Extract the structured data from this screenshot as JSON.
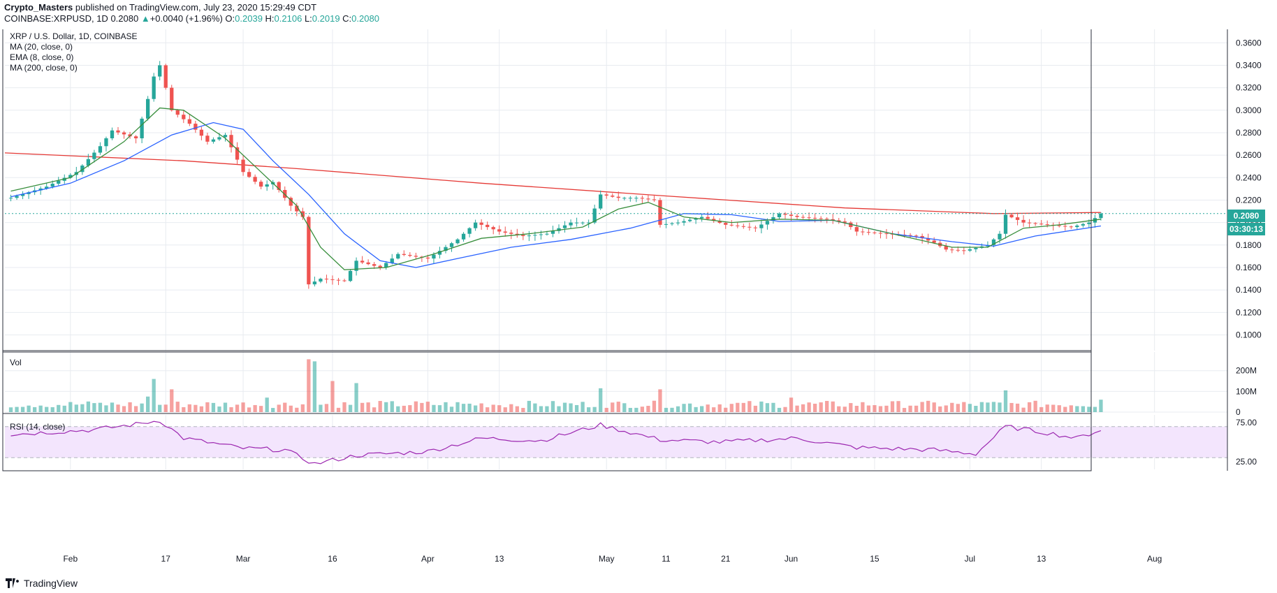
{
  "header": {
    "author": "Crypto_Masters",
    "published_text": "published on TradingView.com, July 23, 2020 15:29:49 CDT",
    "symbol": "COINBASE:XRPUSD, 1D",
    "last": "0.2080",
    "change": "+0.0040 (+1.96%)",
    "o_label": "O:",
    "o": "0.2039",
    "h_label": "H:",
    "h": "0.2106",
    "l_label": "L:",
    "l": "0.2019",
    "c_label": "C:",
    "c": "0.2080"
  },
  "legend": {
    "title": "XRP / U.S. Dollar, 1D, COINBASE",
    "ma20": "MA (20, close, 0)",
    "ema8": "EMA (8, close, 0)",
    "ma200": "MA (200, close, 0)",
    "vol": "Vol",
    "rsi": "RSI (14, close)"
  },
  "price_tag": {
    "value": "0.2080",
    "countdown": "03:30:13"
  },
  "footer": {
    "brand": "TradingView"
  },
  "colors": {
    "up": "#26a69a",
    "down": "#ef5350",
    "ma20": "#2962ff",
    "ema8": "#388e3c",
    "ma200": "#e53935",
    "rsi": "#9c27b0",
    "rsi_band": "#f3e5fd"
  },
  "chart_data": [
    {
      "type": "candlestick",
      "title": "XRP / U.S. Dollar, 1D, COINBASE",
      "x_ticks": [
        "Feb",
        "17",
        "Mar",
        "16",
        "Apr",
        "13",
        "May",
        "11",
        "21",
        "Jun",
        "15",
        "Jul",
        "13",
        "Aug"
      ],
      "y_ticks": [
        "0.3600",
        "0.3400",
        "0.3200",
        "0.3000",
        "0.2800",
        "0.2600",
        "0.2400",
        "0.2200",
        "0.2000",
        "0.1800",
        "0.1600",
        "0.1400",
        "0.1200",
        "0.1000"
      ],
      "ylim": [
        0.086,
        0.372
      ],
      "xlim": [
        "2020-01-21",
        "2020-08-13"
      ],
      "candle_close_path": [
        [
          "2020-01-22",
          0.222
        ],
        [
          "2020-01-28",
          0.232
        ],
        [
          "2020-02-02",
          0.245
        ],
        [
          "2020-02-06",
          0.268
        ],
        [
          "2020-02-08",
          0.282
        ],
        [
          "2020-02-12",
          0.275
        ],
        [
          "2020-02-14",
          0.31
        ],
        [
          "2020-02-15",
          0.33
        ],
        [
          "2020-02-16",
          0.34
        ],
        [
          "2020-02-18",
          0.3
        ],
        [
          "2020-02-21",
          0.288
        ],
        [
          "2020-02-24",
          0.272
        ],
        [
          "2020-02-27",
          0.278
        ],
        [
          "2020-03-01",
          0.245
        ],
        [
          "2020-03-04",
          0.232
        ],
        [
          "2020-03-06",
          0.236
        ],
        [
          "2020-03-09",
          0.215
        ],
        [
          "2020-03-11",
          0.205
        ],
        [
          "2020-03-12",
          0.145
        ],
        [
          "2020-03-14",
          0.15
        ],
        [
          "2020-03-18",
          0.148
        ],
        [
          "2020-03-20",
          0.166
        ],
        [
          "2020-03-24",
          0.16
        ],
        [
          "2020-03-27",
          0.172
        ],
        [
          "2020-04-01",
          0.168
        ],
        [
          "2020-04-06",
          0.185
        ],
        [
          "2020-04-09",
          0.2
        ],
        [
          "2020-04-13",
          0.192
        ],
        [
          "2020-04-17",
          0.188
        ],
        [
          "2020-04-21",
          0.19
        ],
        [
          "2020-04-25",
          0.2
        ],
        [
          "2020-04-28",
          0.2
        ],
        [
          "2020-04-30",
          0.225
        ],
        [
          "2020-05-03",
          0.222
        ],
        [
          "2020-05-06",
          0.222
        ],
        [
          "2020-05-09",
          0.22
        ],
        [
          "2020-05-10",
          0.198
        ],
        [
          "2020-05-13",
          0.2
        ],
        [
          "2020-05-17",
          0.205
        ],
        [
          "2020-05-21",
          0.198
        ],
        [
          "2020-05-26",
          0.195
        ],
        [
          "2020-05-30",
          0.208
        ],
        [
          "2020-06-02",
          0.205
        ],
        [
          "2020-06-07",
          0.203
        ],
        [
          "2020-06-10",
          0.2
        ],
        [
          "2020-06-12",
          0.192
        ],
        [
          "2020-06-17",
          0.19
        ],
        [
          "2020-06-22",
          0.188
        ],
        [
          "2020-06-25",
          0.182
        ],
        [
          "2020-06-27",
          0.176
        ],
        [
          "2020-06-30",
          0.175
        ],
        [
          "2020-07-04",
          0.18
        ],
        [
          "2020-07-06",
          0.19
        ],
        [
          "2020-07-07",
          0.207
        ],
        [
          "2020-07-10",
          0.2
        ],
        [
          "2020-07-14",
          0.198
        ],
        [
          "2020-07-18",
          0.196
        ],
        [
          "2020-07-21",
          0.2
        ],
        [
          "2020-07-23",
          0.208
        ]
      ],
      "series": [
        {
          "name": "MA (20, close, 0)",
          "points": [
            [
              "2020-01-22",
              0.223
            ],
            [
              "2020-02-01",
              0.235
            ],
            [
              "2020-02-10",
              0.255
            ],
            [
              "2020-02-18",
              0.278
            ],
            [
              "2020-02-25",
              0.289
            ],
            [
              "2020-03-01",
              0.283
            ],
            [
              "2020-03-06",
              0.255
            ],
            [
              "2020-03-12",
              0.225
            ],
            [
              "2020-03-18",
              0.19
            ],
            [
              "2020-03-24",
              0.166
            ],
            [
              "2020-03-30",
              0.16
            ],
            [
              "2020-04-06",
              0.168
            ],
            [
              "2020-04-15",
              0.178
            ],
            [
              "2020-04-25",
              0.185
            ],
            [
              "2020-05-05",
              0.195
            ],
            [
              "2020-05-14",
              0.208
            ],
            [
              "2020-05-22",
              0.207
            ],
            [
              "2020-05-30",
              0.201
            ],
            [
              "2020-06-08",
              0.202
            ],
            [
              "2020-06-18",
              0.19
            ],
            [
              "2020-06-28",
              0.183
            ],
            [
              "2020-07-05",
              0.179
            ],
            [
              "2020-07-12",
              0.188
            ],
            [
              "2020-07-23",
              0.197
            ]
          ]
        },
        {
          "name": "EMA (8, close, 0)",
          "points": [
            [
              "2020-01-22",
              0.228
            ],
            [
              "2020-02-01",
              0.24
            ],
            [
              "2020-02-10",
              0.272
            ],
            [
              "2020-02-16",
              0.302
            ],
            [
              "2020-02-20",
              0.3
            ],
            [
              "2020-02-27",
              0.275
            ],
            [
              "2020-03-04",
              0.245
            ],
            [
              "2020-03-10",
              0.215
            ],
            [
              "2020-03-14",
              0.178
            ],
            [
              "2020-03-18",
              0.158
            ],
            [
              "2020-03-25",
              0.16
            ],
            [
              "2020-04-02",
              0.172
            ],
            [
              "2020-04-10",
              0.186
            ],
            [
              "2020-04-18",
              0.19
            ],
            [
              "2020-04-27",
              0.196
            ],
            [
              "2020-05-03",
              0.212
            ],
            [
              "2020-05-08",
              0.218
            ],
            [
              "2020-05-14",
              0.205
            ],
            [
              "2020-05-22",
              0.2
            ],
            [
              "2020-05-30",
              0.203
            ],
            [
              "2020-06-08",
              0.202
            ],
            [
              "2020-06-18",
              0.19
            ],
            [
              "2020-06-28",
              0.178
            ],
            [
              "2020-07-04",
              0.178
            ],
            [
              "2020-07-10",
              0.195
            ],
            [
              "2020-07-16",
              0.198
            ],
            [
              "2020-07-23",
              0.203
            ]
          ]
        },
        {
          "name": "MA (200, close, 0)",
          "points": [
            [
              "2020-01-21",
              0.262
            ],
            [
              "2020-02-20",
              0.255
            ],
            [
              "2020-03-10",
              0.248
            ],
            [
              "2020-04-10",
              0.235
            ],
            [
              "2020-05-10",
              0.224
            ],
            [
              "2020-06-10",
              0.213
            ],
            [
              "2020-07-05",
              0.208
            ],
            [
              "2020-07-23",
              0.209
            ]
          ]
        }
      ]
    },
    {
      "type": "bar",
      "title": "Vol",
      "y_ticks": [
        "200M",
        "100M",
        "0"
      ],
      "ylim": [
        0,
        290
      ],
      "bars_M": [
        [
          "2020-01-28",
          25
        ],
        [
          "2020-02-06",
          45
        ],
        [
          "2020-02-14",
          75
        ],
        [
          "2020-02-15",
          160
        ],
        [
          "2020-02-18",
          110
        ],
        [
          "2020-03-05",
          70
        ],
        [
          "2020-03-12",
          255
        ],
        [
          "2020-03-13",
          245
        ],
        [
          "2020-03-16",
          150
        ],
        [
          "2020-03-20",
          140
        ],
        [
          "2020-04-30",
          115
        ],
        [
          "2020-05-10",
          110
        ],
        [
          "2020-06-01",
          70
        ],
        [
          "2020-07-07",
          105
        ],
        [
          "2020-07-23",
          60
        ]
      ]
    },
    {
      "type": "line",
      "title": "RSI (14, close)",
      "y_ticks": [
        "75.00",
        "25.00"
      ],
      "ylim": [
        15,
        85
      ],
      "band": [
        30,
        70
      ],
      "points": [
        [
          "2020-01-22",
          60
        ],
        [
          "2020-02-05",
          66
        ],
        [
          "2020-02-12",
          73
        ],
        [
          "2020-02-16",
          78
        ],
        [
          "2020-02-20",
          55
        ],
        [
          "2020-03-01",
          42
        ],
        [
          "2020-03-08",
          40
        ],
        [
          "2020-03-13",
          22
        ],
        [
          "2020-03-20",
          33
        ],
        [
          "2020-04-01",
          38
        ],
        [
          "2020-04-10",
          55
        ],
        [
          "2020-04-20",
          52
        ],
        [
          "2020-04-30",
          72
        ],
        [
          "2020-05-10",
          53
        ],
        [
          "2020-05-20",
          50
        ],
        [
          "2020-06-02",
          55
        ],
        [
          "2020-06-12",
          43
        ],
        [
          "2020-06-25",
          40
        ],
        [
          "2020-07-02",
          35
        ],
        [
          "2020-07-07",
          70
        ],
        [
          "2020-07-14",
          62
        ],
        [
          "2020-07-19",
          55
        ],
        [
          "2020-07-23",
          66
        ]
      ]
    }
  ]
}
